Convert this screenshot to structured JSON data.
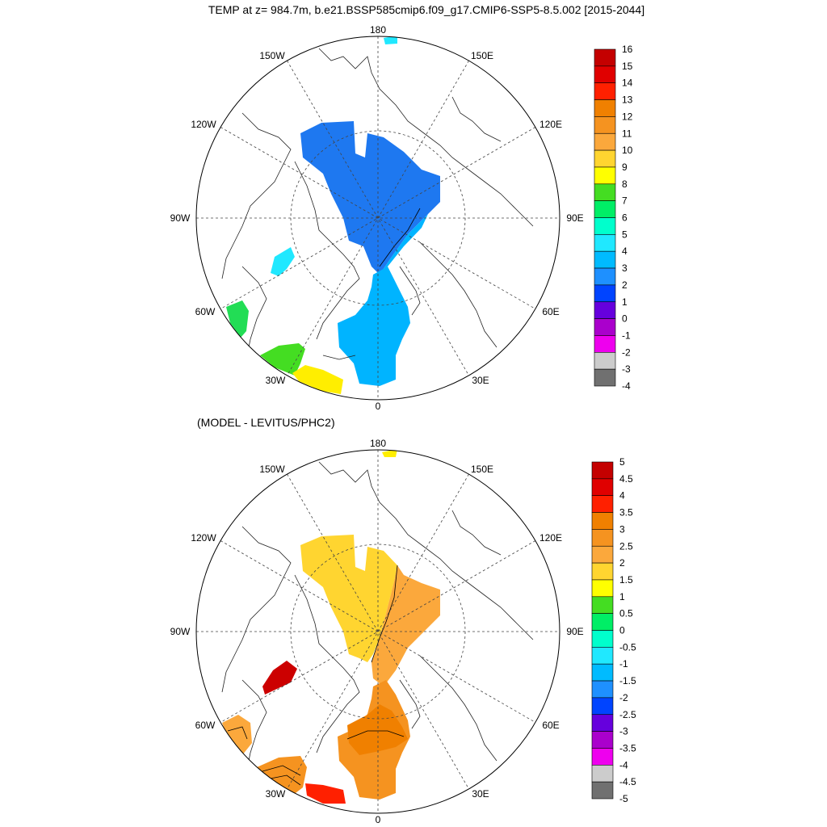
{
  "title": "TEMP at z= 984.7m, b.e21.BSSP585cmip6.f09_g17.CMIP6-SSP5-8.5.002 [2015-2044]",
  "panel2_title": "(MODEL - LEVITUS/PHC2)",
  "longitude_labels": {
    "n180": "180",
    "w150": "150W",
    "e150": "150E",
    "w120": "120W",
    "e120": "120E",
    "w90": "90W",
    "e90": "90E",
    "w60": "60W",
    "e60": "60E",
    "w30": "30W",
    "e30": "30E",
    "zero": "0"
  },
  "colorbar_top": {
    "labels": [
      "16",
      "15",
      "14",
      "13",
      "12",
      "11",
      "10",
      "9",
      "8",
      "7",
      "6",
      "5",
      "4",
      "3",
      "2",
      "1",
      "0",
      "-1",
      "-2",
      "-3",
      "-4"
    ],
    "colors": [
      "#c40000",
      "#e00000",
      "#ff2000",
      "#f08000",
      "#f59320",
      "#fba83c",
      "#ffd530",
      "#ffff00",
      "#44dd22",
      "#00ee66",
      "#00ffcc",
      "#20e8ff",
      "#00bbff",
      "#1e90ff",
      "#0044ff",
      "#6600dd",
      "#aa00cc",
      "#ee00ee",
      "#cccccc",
      "#707070"
    ]
  },
  "colorbar_bottom": {
    "labels": [
      "5",
      "4.5",
      "4",
      "3.5",
      "3",
      "2.5",
      "2",
      "1.5",
      "1",
      "0.5",
      "0",
      "-0.5",
      "-1",
      "-1.5",
      "-2",
      "-2.5",
      "-3",
      "-3.5",
      "-4",
      "-4.5",
      "-5"
    ],
    "colors": [
      "#c40000",
      "#e00000",
      "#ff2000",
      "#f08000",
      "#f59320",
      "#fba83c",
      "#ffd530",
      "#ffff00",
      "#44dd22",
      "#00ee66",
      "#00ffcc",
      "#20e8ff",
      "#00bbff",
      "#1e90ff",
      "#0044ff",
      "#6600dd",
      "#aa00cc",
      "#ee00ee",
      "#cccccc",
      "#707070"
    ]
  },
  "field_colors": {
    "top_main": "#1e78f0",
    "top_atlantic": "#00b4ff",
    "top_baffin": "#20e8ff",
    "top_labrador": "#22dd55",
    "top_green": "#44dd22",
    "top_yellow": "#ffee00",
    "bottom_main": "#ffd530",
    "bottom_eurasian": "#fba83c",
    "bottom_atlantic": "#f59320",
    "bottom_core": "#f08000",
    "bottom_baffin": "#cc0000",
    "bottom_red": "#ff2000",
    "bottom_yellow": "#ffee00"
  }
}
